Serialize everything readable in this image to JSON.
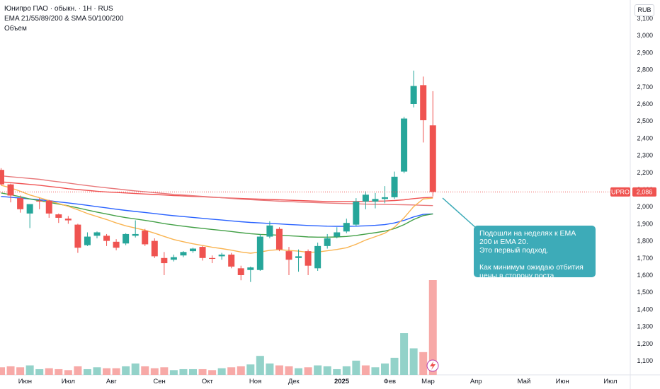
{
  "header": {
    "title": "Юнипро ПАО · обыкн. · 1Н · RUS",
    "indicators": "EMA 21/55/89/200 & SMA 50/100/200",
    "volume_label": "Объем",
    "currency": "RUB"
  },
  "price_tag": {
    "ticker": "UPRO",
    "value": "2,086"
  },
  "annotation": {
    "line1": "Подошли на неделях к EMA",
    "line2": "200 и EMA 20.",
    "line3": "Это первый подход.",
    "line4": "Как минимум ожидаю отбития",
    "line5": "цены в сторону роста."
  },
  "chart_data": {
    "type": "candlestick",
    "interval": "weekly",
    "currency": "RUB",
    "x_ticks": [
      "Июн",
      "Июл",
      "Авг",
      "Сен",
      "Окт",
      "Ноя",
      "Дек",
      "2025",
      "Фев",
      "Мар",
      "Апр",
      "Май",
      "Июн",
      "Июл"
    ],
    "y_ticks": [
      "1,100",
      "1,200",
      "1,300",
      "1,400",
      "1,500",
      "1,600",
      "1,700",
      "1,800",
      "1,900",
      "2,000",
      "2,100",
      "2,200",
      "2,300",
      "2,400",
      "2,500",
      "2,600",
      "2,700",
      "2,800",
      "2,900",
      "3,000",
      "3,100"
    ],
    "ylim": [
      1060,
      3140
    ],
    "last_price": 2086,
    "colors": {
      "up": "#26a69a",
      "down": "#ef5350",
      "vol_up": "#93d2c9",
      "vol_down": "#f7a9a7"
    },
    "candles": [
      {
        "o": 2215,
        "h": 2225,
        "l": 2125,
        "c": 2130
      },
      {
        "o": 2130,
        "h": 2135,
        "l": 2025,
        "c": 2065
      },
      {
        "o": 2050,
        "h": 2065,
        "l": 1965,
        "c": 1985
      },
      {
        "o": 1960,
        "h": 2005,
        "l": 1875,
        "c": 2015
      },
      {
        "o": 2035,
        "h": 2050,
        "l": 1985,
        "c": 2030
      },
      {
        "o": 2035,
        "h": 2040,
        "l": 1935,
        "c": 1960
      },
      {
        "o": 1955,
        "h": 1960,
        "l": 1905,
        "c": 1935
      },
      {
        "o": 1930,
        "h": 1945,
        "l": 1900,
        "c": 1920
      },
      {
        "o": 1895,
        "h": 1900,
        "l": 1730,
        "c": 1760
      },
      {
        "o": 1775,
        "h": 1850,
        "l": 1770,
        "c": 1825
      },
      {
        "o": 1830,
        "h": 1855,
        "l": 1815,
        "c": 1850
      },
      {
        "o": 1830,
        "h": 1840,
        "l": 1770,
        "c": 1800
      },
      {
        "o": 1795,
        "h": 1810,
        "l": 1745,
        "c": 1760
      },
      {
        "o": 1785,
        "h": 1845,
        "l": 1775,
        "c": 1840
      },
      {
        "o": 1830,
        "h": 1920,
        "l": 1820,
        "c": 1840
      },
      {
        "o": 1860,
        "h": 1870,
        "l": 1770,
        "c": 1780
      },
      {
        "o": 1800,
        "h": 1815,
        "l": 1700,
        "c": 1710
      },
      {
        "o": 1700,
        "h": 1735,
        "l": 1600,
        "c": 1670
      },
      {
        "o": 1690,
        "h": 1720,
        "l": 1680,
        "c": 1705
      },
      {
        "o": 1715,
        "h": 1740,
        "l": 1705,
        "c": 1735
      },
      {
        "o": 1740,
        "h": 1760,
        "l": 1730,
        "c": 1755
      },
      {
        "o": 1765,
        "h": 1770,
        "l": 1685,
        "c": 1700
      },
      {
        "o": 1700,
        "h": 1715,
        "l": 1670,
        "c": 1695
      },
      {
        "o": 1710,
        "h": 1730,
        "l": 1690,
        "c": 1720
      },
      {
        "o": 1720,
        "h": 1730,
        "l": 1640,
        "c": 1650
      },
      {
        "o": 1640,
        "h": 1655,
        "l": 1570,
        "c": 1600
      },
      {
        "o": 1630,
        "h": 1650,
        "l": 1560,
        "c": 1645
      },
      {
        "o": 1630,
        "h": 1840,
        "l": 1625,
        "c": 1825
      },
      {
        "o": 1825,
        "h": 1915,
        "l": 1815,
        "c": 1890
      },
      {
        "o": 1870,
        "h": 1880,
        "l": 1740,
        "c": 1750
      },
      {
        "o": 1740,
        "h": 1765,
        "l": 1600,
        "c": 1690
      },
      {
        "o": 1700,
        "h": 1750,
        "l": 1620,
        "c": 1710
      },
      {
        "o": 1740,
        "h": 1750,
        "l": 1600,
        "c": 1655
      },
      {
        "o": 1640,
        "h": 1790,
        "l": 1625,
        "c": 1770
      },
      {
        "o": 1770,
        "h": 1840,
        "l": 1755,
        "c": 1815
      },
      {
        "o": 1825,
        "h": 1880,
        "l": 1815,
        "c": 1850
      },
      {
        "o": 1855,
        "h": 1930,
        "l": 1845,
        "c": 1905
      },
      {
        "o": 1895,
        "h": 2050,
        "l": 1885,
        "c": 2030
      },
      {
        "o": 2030,
        "h": 2090,
        "l": 1985,
        "c": 2070
      },
      {
        "o": 2030,
        "h": 2080,
        "l": 1990,
        "c": 2045
      },
      {
        "o": 2045,
        "h": 2120,
        "l": 2020,
        "c": 2055
      },
      {
        "o": 2055,
        "h": 2205,
        "l": 2045,
        "c": 2175
      },
      {
        "o": 2205,
        "h": 2525,
        "l": 2195,
        "c": 2515
      },
      {
        "o": 2600,
        "h": 2795,
        "l": 2580,
        "c": 2705
      },
      {
        "o": 2710,
        "h": 2760,
        "l": 2375,
        "c": 2505
      },
      {
        "o": 2475,
        "h": 2675,
        "l": 2060,
        "c": 2086
      }
    ],
    "volume": [
      {
        "v": 8,
        "up": false
      },
      {
        "v": 9,
        "up": false
      },
      {
        "v": 8,
        "up": false
      },
      {
        "v": 10,
        "up": true
      },
      {
        "v": 6,
        "up": true
      },
      {
        "v": 7,
        "up": false
      },
      {
        "v": 6,
        "up": false
      },
      {
        "v": 5,
        "up": false
      },
      {
        "v": 9,
        "up": false
      },
      {
        "v": 6,
        "up": true
      },
      {
        "v": 8,
        "up": true
      },
      {
        "v": 7,
        "up": false
      },
      {
        "v": 7,
        "up": false
      },
      {
        "v": 9,
        "up": true
      },
      {
        "v": 12,
        "up": true
      },
      {
        "v": 9,
        "up": false
      },
      {
        "v": 7,
        "up": false
      },
      {
        "v": 8,
        "up": false
      },
      {
        "v": 5,
        "up": true
      },
      {
        "v": 6,
        "up": true
      },
      {
        "v": 6,
        "up": true
      },
      {
        "v": 6,
        "up": false
      },
      {
        "v": 5,
        "up": false
      },
      {
        "v": 7,
        "up": true
      },
      {
        "v": 8,
        "up": false
      },
      {
        "v": 9,
        "up": false
      },
      {
        "v": 11,
        "up": true
      },
      {
        "v": 20,
        "up": true
      },
      {
        "v": 12,
        "up": true
      },
      {
        "v": 10,
        "up": false
      },
      {
        "v": 9,
        "up": false
      },
      {
        "v": 7,
        "up": true
      },
      {
        "v": 8,
        "up": false
      },
      {
        "v": 10,
        "up": true
      },
      {
        "v": 9,
        "up": true
      },
      {
        "v": 6,
        "up": true
      },
      {
        "v": 9,
        "up": true
      },
      {
        "v": 15,
        "up": true
      },
      {
        "v": 10,
        "up": false
      },
      {
        "v": 8,
        "up": true
      },
      {
        "v": 12,
        "up": true
      },
      {
        "v": 18,
        "up": true
      },
      {
        "v": 44,
        "up": true
      },
      {
        "v": 28,
        "up": true
      },
      {
        "v": 24,
        "up": false
      },
      {
        "v": 100,
        "up": false
      }
    ],
    "series": [
      {
        "name": "EMA 200",
        "color": "#f05252",
        "values": [
          2145,
          2140,
          2135,
          2130,
          2125,
          2118,
          2112,
          2105,
          2100,
          2095,
          2090,
          2086,
          2083,
          2080,
          2077,
          2074,
          2071,
          2068,
          2065,
          2063,
          2060,
          2058,
          2055,
          2053,
          2050,
          2048,
          2046,
          2044,
          2042,
          2040,
          2038,
          2036,
          2034,
          2032,
          2030,
          2030,
          2030,
          2030,
          2031,
          2032,
          2033,
          2036,
          2040,
          2047,
          2052,
          2055
        ]
      },
      {
        "name": "SMA 200",
        "color": "#e8787a",
        "values": [
          2180,
          2175,
          2170,
          2165,
          2160,
          2152,
          2145,
          2138,
          2130,
          2123,
          2116,
          2110,
          2104,
          2098,
          2092,
          2087,
          2082,
          2077,
          2072,
          2068,
          2064,
          2060,
          2056,
          2052,
          2048,
          2044,
          2041,
          2038,
          2035,
          2032,
          2030,
          2027,
          2025,
          2023,
          2021,
          2020,
          2018,
          2017,
          2015,
          2014,
          2013,
          2012,
          2011,
          2010,
          2008,
          2006
        ]
      },
      {
        "name": "EMA 89",
        "color": "#2962ff",
        "values": [
          2060,
          2055,
          2050,
          2045,
          2040,
          2035,
          2028,
          2022,
          2015,
          2008,
          2000,
          1993,
          1985,
          1978,
          1972,
          1966,
          1960,
          1953,
          1947,
          1942,
          1937,
          1932,
          1927,
          1922,
          1917,
          1912,
          1908,
          1905,
          1902,
          1899,
          1896,
          1893,
          1890,
          1888,
          1886,
          1885,
          1885,
          1886,
          1888,
          1891,
          1895,
          1905,
          1920,
          1940,
          1955,
          1958
        ]
      },
      {
        "name": "EMA 55",
        "color": "#43a047",
        "values": [
          2080,
          2070,
          2058,
          2045,
          2035,
          2025,
          2015,
          2005,
          1993,
          1980,
          1968,
          1957,
          1946,
          1936,
          1928,
          1920,
          1911,
          1901,
          1893,
          1886,
          1879,
          1873,
          1867,
          1861,
          1855,
          1848,
          1842,
          1838,
          1836,
          1833,
          1830,
          1827,
          1823,
          1822,
          1822,
          1823,
          1826,
          1832,
          1840,
          1848,
          1857,
          1872,
          1895,
          1925,
          1948,
          1958
        ]
      },
      {
        "name": "EMA 21",
        "color": "#f9b451",
        "values": [
          2125,
          2110,
          2090,
          2068,
          2052,
          2035,
          2018,
          2002,
          1982,
          1960,
          1942,
          1925,
          1905,
          1888,
          1875,
          1862,
          1845,
          1826,
          1808,
          1795,
          1783,
          1773,
          1763,
          1755,
          1746,
          1735,
          1728,
          1735,
          1745,
          1749,
          1744,
          1740,
          1733,
          1735,
          1742,
          1750,
          1760,
          1780,
          1805,
          1825,
          1845,
          1880,
          1935,
          2000,
          2045,
          2050
        ]
      }
    ]
  }
}
